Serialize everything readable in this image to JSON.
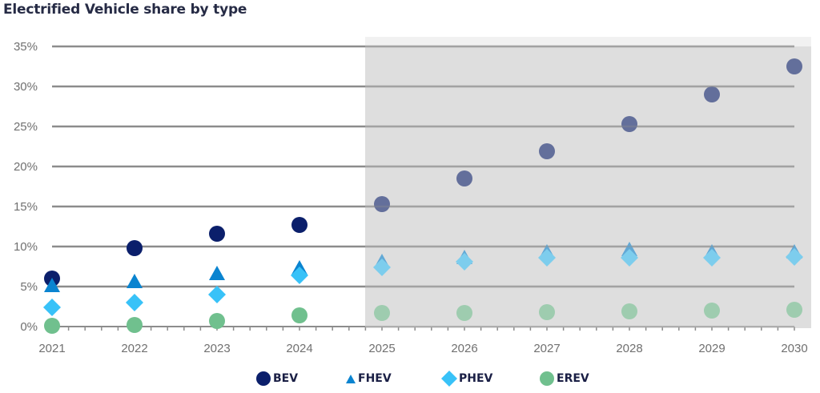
{
  "chart_data": {
    "type": "scatter",
    "title": "Electrified Vehicle share by type",
    "xlabel": "",
    "ylabel": "",
    "categories": [
      "2021",
      "2022",
      "2023",
      "2024",
      "2025",
      "2026",
      "2027",
      "2028",
      "2029",
      "2030"
    ],
    "ylim": [
      0,
      35
    ],
    "yticks": [
      "0%",
      "5%",
      "10%",
      "15%",
      "20%",
      "25%",
      "30%",
      "35%"
    ],
    "ytick_values": [
      0,
      5,
      10,
      15,
      20,
      25,
      30,
      35
    ],
    "grid": true,
    "shaded_region": {
      "from": "2025",
      "to": "2030",
      "meaning": "forecast"
    },
    "legend_position": "bottom",
    "series": [
      {
        "name": "BEV",
        "marker": "circle",
        "color": "#0b1f6b",
        "values": [
          6.0,
          9.8,
          11.6,
          12.7,
          15.3,
          18.5,
          21.9,
          25.3,
          29.0,
          32.5
        ]
      },
      {
        "name": "FHEV",
        "marker": "triangle",
        "color": "#0a84d0",
        "values": [
          5.0,
          5.5,
          6.5,
          7.2,
          8.0,
          8.5,
          9.2,
          9.5,
          9.2,
          9.2
        ]
      },
      {
        "name": "PHEV",
        "marker": "diamond",
        "color": "#38c2f8",
        "values": [
          2.4,
          3.0,
          4.0,
          6.4,
          7.4,
          8.1,
          8.6,
          8.6,
          8.6,
          8.7
        ]
      },
      {
        "name": "EREV",
        "marker": "circle",
        "color": "#70c08e",
        "values": [
          0.1,
          0.2,
          0.7,
          1.4,
          1.7,
          1.7,
          1.8,
          1.9,
          2.0,
          2.1
        ]
      }
    ]
  }
}
